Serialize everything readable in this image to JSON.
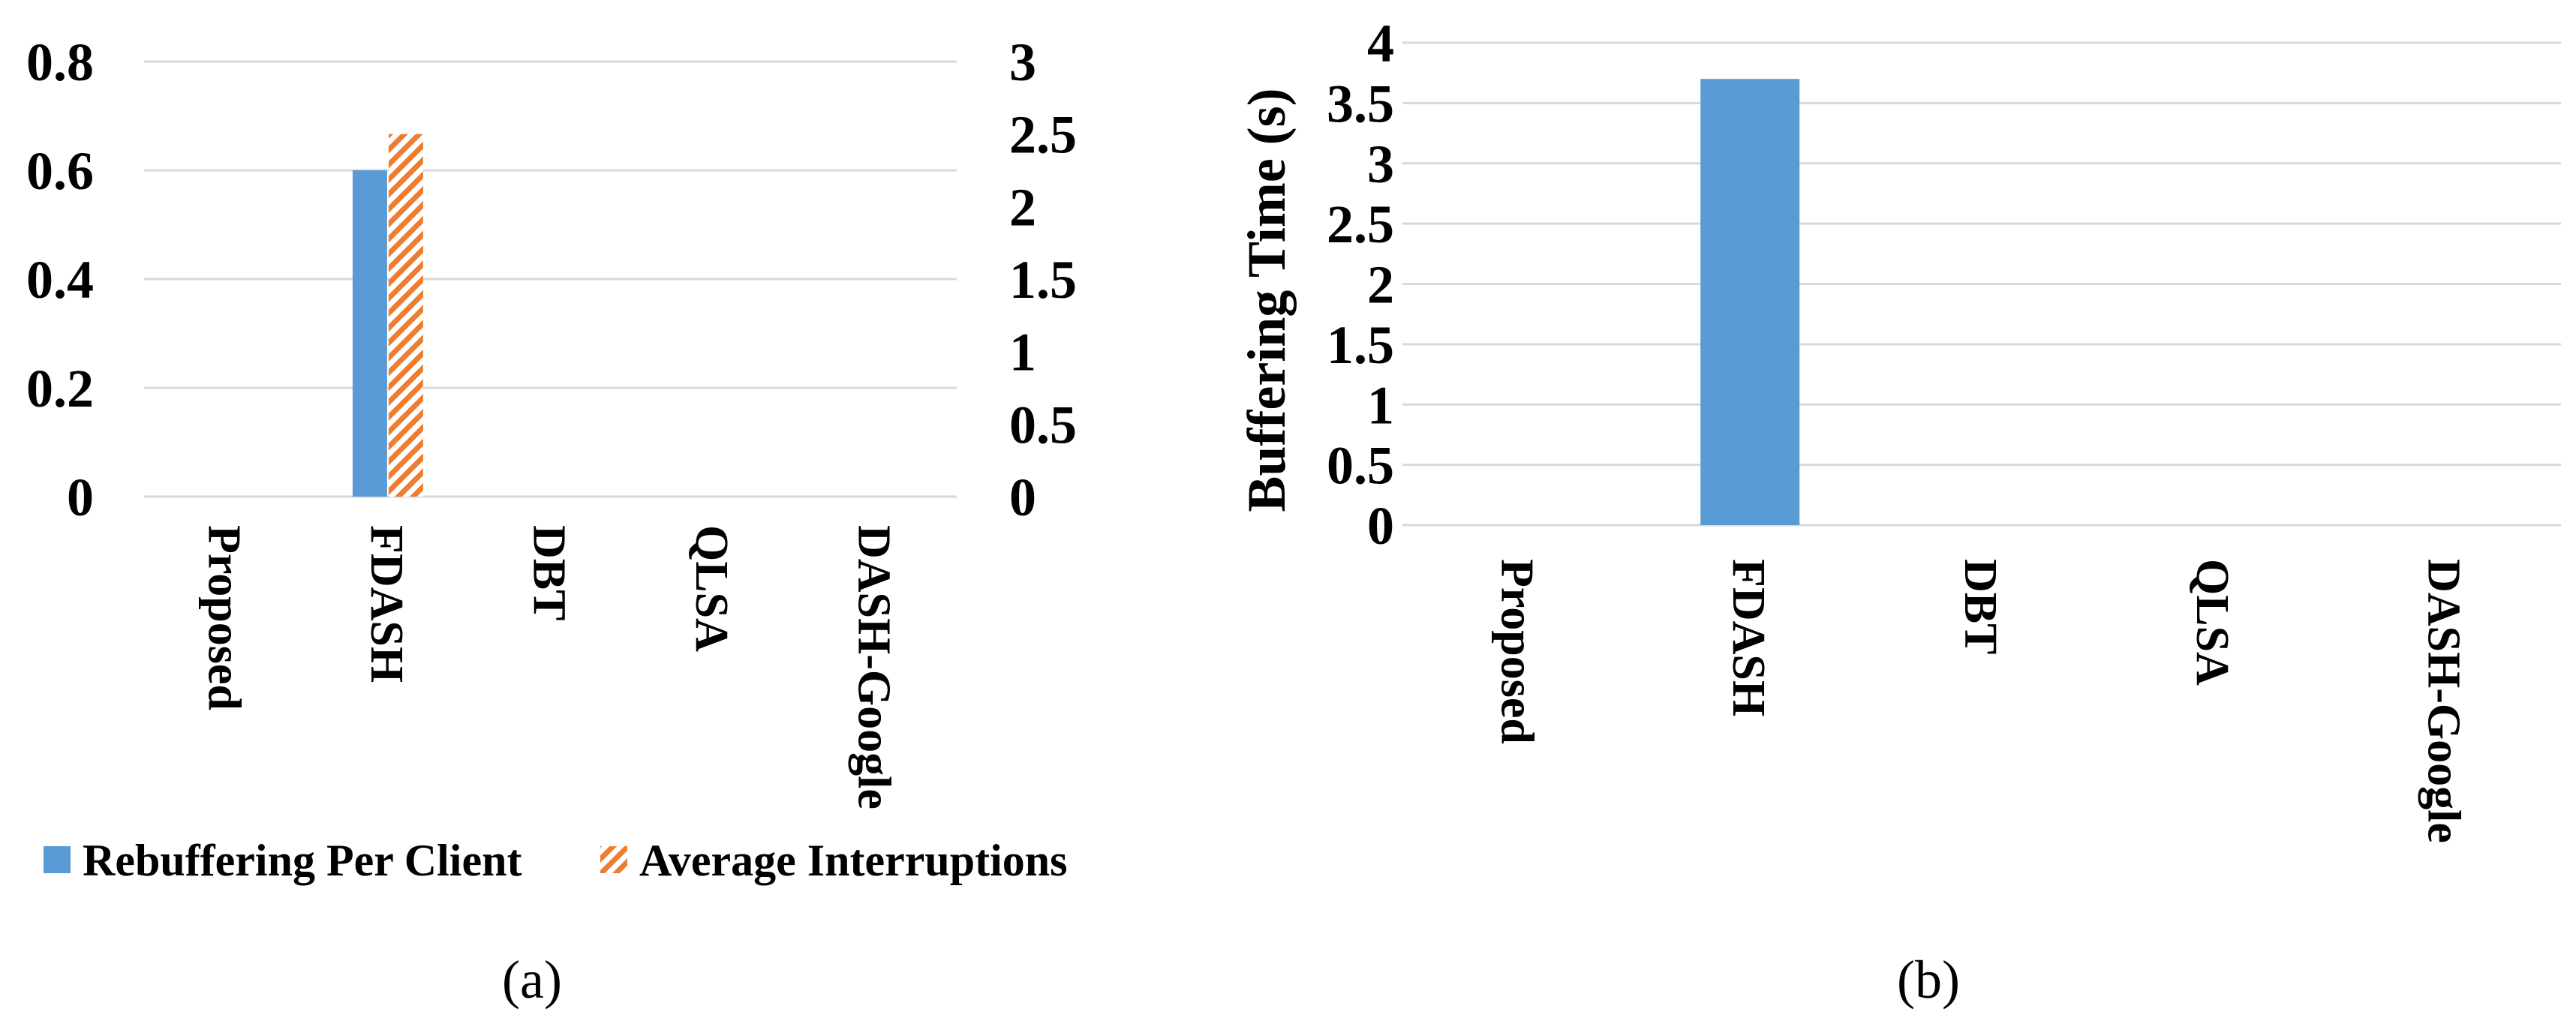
{
  "colors": {
    "series_blue": "#5b9bd5",
    "series_orange": "#ed7d31",
    "grid": "#d9d9d9"
  },
  "panels": {
    "a_label": "(a)",
    "b_label": "(b)"
  },
  "chart_data": [
    {
      "type": "bar",
      "panel": "(a)",
      "categories": [
        "Proposed",
        "FDASH",
        "DBT",
        "QLSA",
        "DASH-Google"
      ],
      "series": [
        {
          "name": "Rebuffering Per Client",
          "axis": "left",
          "color": "#5b9bd5",
          "pattern": "solid",
          "values": [
            0,
            0.6,
            0,
            0,
            0
          ]
        },
        {
          "name": "Average Interruptions",
          "axis": "right",
          "color": "#ed7d31",
          "pattern": "hatched",
          "values": [
            0,
            2.5,
            0,
            0,
            0
          ]
        }
      ],
      "y_left": {
        "ylim": [
          0,
          0.8
        ],
        "ticks": [
          "0",
          "0.2",
          "0.4",
          "0.6",
          "0.8"
        ]
      },
      "y_right": {
        "ylim": [
          0,
          3
        ],
        "ticks": [
          "0",
          "0.5",
          "1",
          "1.5",
          "2",
          "2.5",
          "3"
        ]
      },
      "legend": "bottom",
      "grid": true
    },
    {
      "type": "bar",
      "panel": "(b)",
      "categories": [
        "Proposed",
        "FDASH",
        "DBT",
        "QLSA",
        "DASH-Google"
      ],
      "series": [
        {
          "color": "#5b9bd5",
          "values": [
            0,
            3.7,
            0,
            0,
            0
          ]
        }
      ],
      "ylabel": "Buffering Time (s)",
      "ylim": [
        0,
        4
      ],
      "ticks": [
        "0",
        "0.5",
        "1",
        "1.5",
        "2",
        "2.5",
        "3",
        "3.5",
        "4"
      ],
      "grid": true
    }
  ]
}
